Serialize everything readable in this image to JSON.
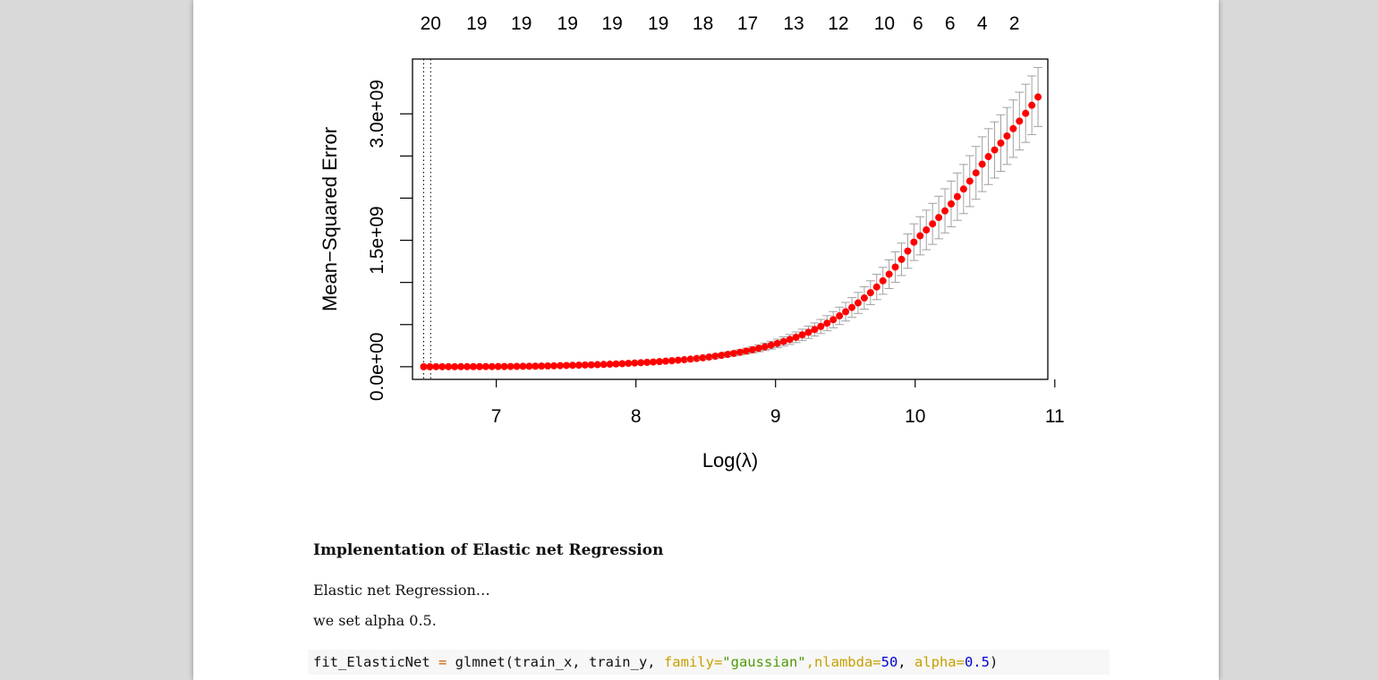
{
  "chart_data": {
    "type": "scatter",
    "xlabel": "Log(λ)",
    "ylabel": "Mean−Squared Error",
    "xlim": [
      6.4,
      10.95
    ],
    "ylim": [
      -150000000,
      3650000000
    ],
    "x_ticks": [
      7,
      8,
      9,
      10,
      11
    ],
    "x_tick_labels": [
      "7",
      "8",
      "9",
      "10",
      "11"
    ],
    "y_ticks": [
      0,
      500000000,
      1000000000,
      1500000000,
      2000000000,
      2500000000,
      3000000000
    ],
    "y_tick_labels": [
      "0.0e+00",
      "",
      "",
      "1.5e+09",
      "",
      "",
      "3.0e+09"
    ],
    "top_axis_labels": [
      "20",
      "19",
      "19",
      "19",
      "19",
      "19",
      "18",
      "17",
      "13",
      "12",
      "10",
      "6",
      "6",
      "4",
      "2"
    ],
    "top_axis_x": [
      6.53,
      6.86,
      7.18,
      7.51,
      7.83,
      8.16,
      8.48,
      8.8,
      9.13,
      9.45,
      9.78,
      10.02,
      10.25,
      10.48,
      10.71
    ],
    "vlines": [
      6.48,
      6.53
    ],
    "series": [
      {
        "color": "#ff0000",
        "error_bar_color": "#a0a0a0",
        "x_start": 6.48,
        "x_end": 10.88,
        "n_points": 100,
        "x_samples": [
          6.5,
          7.0,
          7.5,
          8.0,
          8.5,
          9.0,
          9.5,
          10.0,
          10.5,
          10.88
        ],
        "y_samples": [
          0,
          2000000,
          15000000,
          45000000,
          110000000,
          270000000,
          650000000,
          1500000000,
          2450000000,
          3200000000
        ],
        "se_samples": [
          0,
          1000000,
          4000000,
          9000000,
          20000000,
          50000000,
          110000000,
          220000000,
          330000000,
          350000000
        ]
      }
    ]
  },
  "heading": "Implenentation of Elastic net Regression",
  "para1": "Elastic net Regression…",
  "para2": "we set alpha 0.5.",
  "code": {
    "fn_part": "fit_ElasticNet ",
    "op": "=",
    "call": " glmnet(train_x, train_y, ",
    "arg1": "family=",
    "str1": "\"gaussian\"",
    "comma1": ",",
    "arg2": "nlambda=",
    "num2": "50",
    "comma2": ", ",
    "arg3": "alpha=",
    "num3": "0.5",
    "close": ")"
  }
}
